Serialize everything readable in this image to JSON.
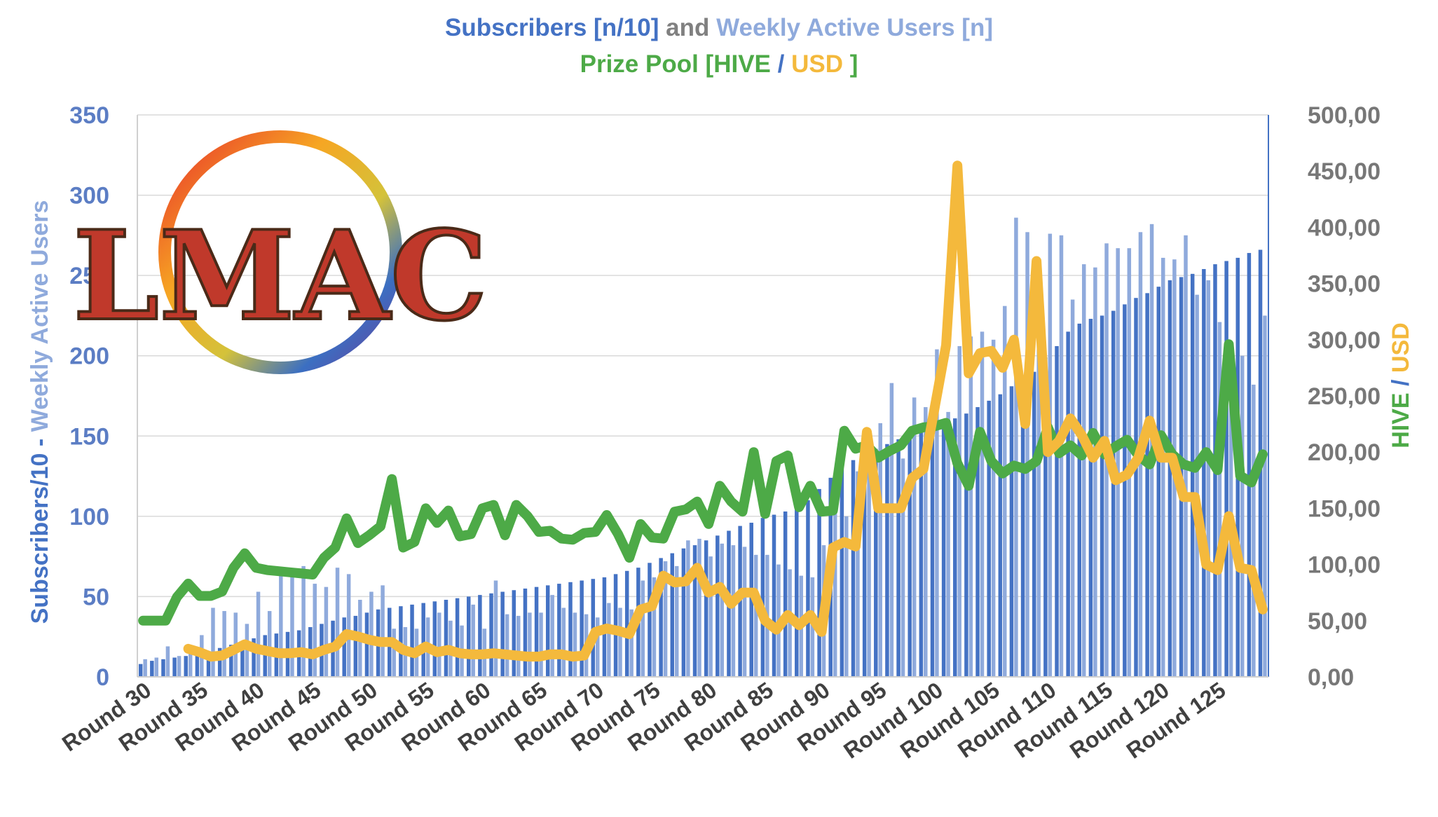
{
  "title": {
    "subscribers_text": "Subscribers [n/10]",
    "and_text": "and",
    "wau_text": "Weekly Active Users [n]",
    "prize_text": "Prize Pool [HIVE",
    "slash_text": "/",
    "usd_text": "USD",
    "close_text": "]"
  },
  "logo": {
    "text": "LMAC"
  },
  "colors": {
    "subscribers": "#4472c4",
    "wau": "#8faadc",
    "hive": "#4daa47",
    "usd": "#f4b93c",
    "axis_text_left": "#5b7dc4",
    "axis_text_right": "#777777",
    "grid": "#d9d9d9",
    "title_gray": "#808080"
  },
  "chart_data": {
    "type": "bar+line",
    "title": "Subscribers [n/10] and Weekly Active Users [n] / Prize Pool [HIVE / USD ]",
    "x": [
      30,
      31,
      32,
      33,
      34,
      35,
      36,
      37,
      38,
      39,
      40,
      41,
      42,
      43,
      44,
      45,
      46,
      47,
      48,
      49,
      50,
      51,
      52,
      53,
      54,
      55,
      56,
      57,
      58,
      59,
      60,
      61,
      62,
      63,
      64,
      65,
      66,
      67,
      68,
      69,
      70,
      71,
      72,
      73,
      74,
      75,
      76,
      77,
      78,
      79,
      80,
      81,
      82,
      83,
      84,
      85,
      86,
      87,
      88,
      89,
      90,
      91,
      92,
      93,
      94,
      95,
      96,
      97,
      98,
      99,
      100,
      101,
      102,
      103,
      104,
      105,
      106,
      107,
      108,
      109,
      110,
      111,
      112,
      113,
      114,
      115,
      116,
      117,
      118,
      119,
      120,
      121,
      122,
      123,
      124,
      125,
      126,
      127,
      128,
      129
    ],
    "x_tick_labels": [
      "Round 30",
      "Round 35",
      "Round 40",
      "Round 45",
      "Round 50",
      "Round 55",
      "Round 60",
      "Round 65",
      "Round 70",
      "Round 75",
      "Round 80",
      "Round 85",
      "Round 90",
      "Round 95",
      "Round 100",
      "Round 105",
      "Round 110",
      "Round 115",
      "Round 120",
      "Round 125"
    ],
    "left_axis": {
      "label_part1": "Subscribers/10",
      "label_sep": "-",
      "label_part2": "Weekly Active Users",
      "range": [
        0,
        350
      ],
      "ticks": [
        "0",
        "50",
        "100",
        "150",
        "200",
        "250",
        "300",
        "350"
      ]
    },
    "right_axis": {
      "label_part1": "HIVE",
      "label_sep": "/",
      "label_part2": "USD",
      "range": [
        0,
        500
      ],
      "ticks": [
        "0,00",
        "50,00",
        "100,00",
        "150,00",
        "200,00",
        "250,00",
        "300,00",
        "350,00",
        "400,00",
        "450,00",
        "500,00"
      ]
    },
    "series": [
      {
        "name": "Subscribers [n/10]",
        "axis": "left",
        "kind": "bar",
        "values": [
          8,
          10,
          11,
          12,
          13,
          14,
          16,
          18,
          20,
          22,
          24,
          26,
          27,
          28,
          29,
          31,
          33,
          35,
          37,
          38,
          40,
          42,
          43,
          44,
          45,
          46,
          47,
          48,
          49,
          50,
          51,
          52,
          53,
          54,
          55,
          56,
          57,
          58,
          59,
          60,
          61,
          62,
          64,
          66,
          68,
          71,
          74,
          77,
          80,
          82,
          85,
          88,
          91,
          94,
          96,
          99,
          101,
          103,
          106,
          110,
          117,
          124,
          130,
          135,
          138,
          142,
          145,
          148,
          151,
          153,
          155,
          157,
          161,
          164,
          168,
          172,
          176,
          181,
          185,
          190,
          199,
          206,
          215,
          220,
          223,
          225,
          228,
          232,
          236,
          239,
          243,
          247,
          249,
          251,
          254,
          257,
          259,
          261,
          264,
          266
        ]
      },
      {
        "name": "Weekly Active Users [n]",
        "axis": "left",
        "kind": "bar",
        "values": [
          11,
          12,
          19,
          13,
          19,
          26,
          43,
          41,
          40,
          33,
          53,
          41,
          63,
          63,
          69,
          58,
          56,
          68,
          64,
          48,
          53,
          57,
          30,
          31,
          30,
          37,
          40,
          35,
          32,
          45,
          30,
          60,
          39,
          38,
          40,
          40,
          51,
          43,
          40,
          39,
          37,
          46,
          43,
          42,
          60,
          62,
          72,
          69,
          85,
          86,
          75,
          83,
          82,
          81,
          76,
          76,
          70,
          67,
          63,
          62,
          82,
          104,
          100,
          128,
          154,
          158,
          183,
          136,
          174,
          168,
          204,
          165,
          206,
          212,
          215,
          210,
          231,
          286,
          277,
          259,
          276,
          275,
          235,
          257,
          255,
          270,
          267,
          267,
          277,
          282,
          261,
          260,
          275,
          238,
          247,
          221,
          194,
          200,
          182,
          225
        ]
      },
      {
        "name": "HIVE",
        "axis": "right",
        "kind": "line",
        "values": [
          50,
          50,
          50,
          71,
          83,
          72,
          72,
          76,
          97,
          110,
          97,
          95,
          94,
          93,
          92,
          91,
          106,
          115,
          141,
          119,
          126,
          134,
          176,
          115,
          120,
          150,
          137,
          148,
          125,
          127,
          150,
          153,
          126,
          153,
          143,
          129,
          130,
          123,
          122,
          128,
          129,
          144,
          127,
          106,
          136,
          124,
          123,
          147,
          149,
          156,
          136,
          170,
          156,
          147,
          200,
          145,
          192,
          197,
          151,
          170,
          147,
          148,
          219,
          203,
          206,
          195,
          201,
          206,
          219,
          222,
          223,
          226,
          190,
          170,
          218,
          192,
          181,
          188,
          185,
          192,
          222,
          199,
          206,
          197,
          217,
          198,
          205,
          211,
          197,
          189,
          215,
          198,
          189,
          186,
          200,
          184,
          296,
          179,
          173,
          198
        ]
      },
      {
        "name": "USD",
        "axis": "right",
        "kind": "line",
        "values": [
          null,
          null,
          null,
          null,
          25,
          22,
          18,
          19,
          24,
          29,
          25,
          23,
          21,
          21,
          22,
          20,
          24,
          27,
          38,
          36,
          33,
          31,
          31,
          24,
          21,
          27,
          22,
          24,
          21,
          20,
          20,
          21,
          20,
          19,
          18,
          18,
          20,
          20,
          18,
          19,
          40,
          43,
          41,
          38,
          60,
          63,
          90,
          84,
          85,
          97,
          75,
          80,
          65,
          75,
          75,
          50,
          42,
          55,
          46,
          55,
          40,
          115,
          120,
          116,
          218,
          150,
          150,
          150,
          177,
          185,
          240,
          295,
          455,
          270,
          288,
          290,
          275,
          300,
          225,
          370,
          200,
          210,
          230,
          215,
          195,
          210,
          175,
          180,
          195,
          228,
          195,
          195,
          160,
          160,
          100,
          95,
          143,
          97,
          95,
          60
        ]
      }
    ]
  }
}
